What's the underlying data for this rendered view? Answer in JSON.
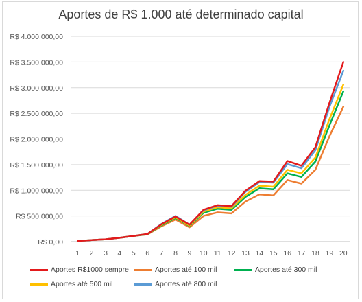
{
  "chart_data": {
    "type": "line",
    "title": "Aportes de R$ 1.000 até determinado capital",
    "xlabel": "",
    "ylabel": "",
    "categories": [
      "1",
      "2",
      "3",
      "4",
      "5",
      "6",
      "7",
      "8",
      "9",
      "10",
      "11",
      "12",
      "13",
      "14",
      "15",
      "16",
      "17",
      "18",
      "19",
      "20"
    ],
    "y_ticks": [
      "R$ 0,00",
      "R$ 500.000,00",
      "R$ 1.000.000,00",
      "R$ 1.500.000,00",
      "R$ 2.000.000,00",
      "R$ 2.500.000,00",
      "R$ 3.000.000,00",
      "R$ 3.500.000,00",
      "R$ 4.000.000,00"
    ],
    "ylim": [
      0,
      4000000
    ],
    "grid": true,
    "legend_position": "bottom",
    "series": [
      {
        "name": "Aportes R$1000 sempre",
        "color": "#e31a1c",
        "values": [
          12000,
          30000,
          45000,
          75000,
          110000,
          150000,
          340000,
          490000,
          330000,
          620000,
          710000,
          690000,
          990000,
          1180000,
          1170000,
          1570000,
          1480000,
          1840000,
          2700000,
          3500000
        ]
      },
      {
        "name": "Aportes até 100 mil",
        "color": "#ed7d31",
        "values": [
          12000,
          30000,
          45000,
          75000,
          110000,
          140000,
          300000,
          430000,
          280000,
          500000,
          570000,
          550000,
          780000,
          920000,
          900000,
          1200000,
          1130000,
          1400000,
          2050000,
          2630000
        ]
      },
      {
        "name": "Aportes até 300 mil",
        "color": "#00b050",
        "values": [
          12000,
          30000,
          45000,
          75000,
          110000,
          145000,
          320000,
          460000,
          305000,
          560000,
          640000,
          620000,
          870000,
          1040000,
          1020000,
          1330000,
          1260000,
          1560000,
          2260000,
          2930000
        ]
      },
      {
        "name": "Aportes até 500 mil",
        "color": "#ffc000",
        "values": [
          12000,
          30000,
          45000,
          75000,
          110000,
          148000,
          330000,
          475000,
          315000,
          585000,
          670000,
          650000,
          910000,
          1090000,
          1070000,
          1400000,
          1330000,
          1640000,
          2380000,
          3060000
        ]
      },
      {
        "name": "Aportes até 800 mil",
        "color": "#5b9bd5",
        "values": [
          12000,
          30000,
          45000,
          75000,
          110000,
          150000,
          345000,
          500000,
          330000,
          610000,
          700000,
          680000,
          970000,
          1160000,
          1150000,
          1510000,
          1430000,
          1780000,
          2620000,
          3330000
        ]
      }
    ]
  }
}
